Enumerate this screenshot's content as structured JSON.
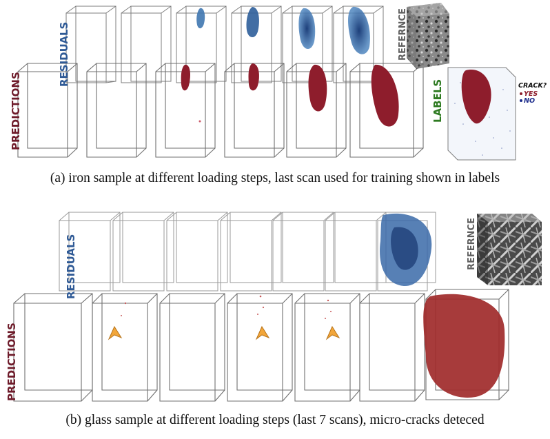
{
  "panel_a": {
    "caption": "(a)  iron sample at different loading steps, last scan used for training shown in labels",
    "residuals_label": "RESIDUALS",
    "predictions_label": "PREDICTIONS",
    "reference_label": "REFERNCE",
    "labels_label": "LABELS",
    "legend": {
      "title": "CRACK?",
      "yes": "YES",
      "no": "NO"
    },
    "colors": {
      "residual": "#2f6aa6",
      "prediction": "#8e1d2c",
      "labels_text": "#2d7a20",
      "no_dot": "#1c2c8c"
    }
  },
  "panel_b": {
    "caption": "(b)  glass sample at different loading steps (last 7 scans), micro-cracks deteced",
    "residuals_label": "RESIDUALS",
    "predictions_label": "PREDICTIONS",
    "reference_label": "REFERNCE",
    "colors": {
      "residual": "#2f6aa6",
      "prediction": "#a02a2a",
      "marker": "#f2a63a"
    }
  }
}
